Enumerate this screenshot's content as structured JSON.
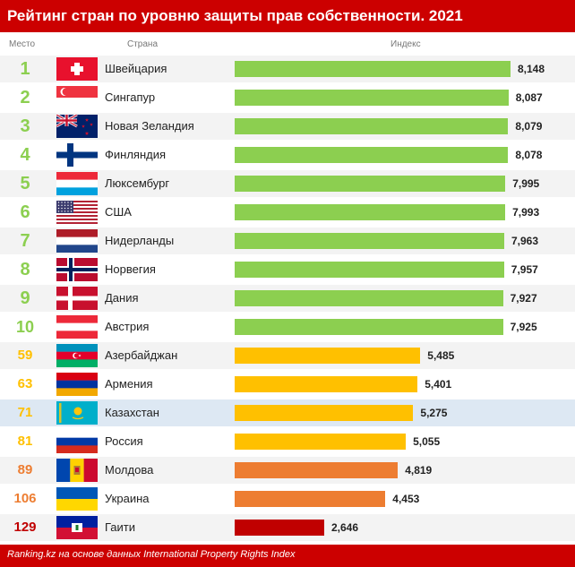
{
  "header": {
    "title": "Рейтинг стран по уровню защиты прав собственности. 2021"
  },
  "columns": {
    "rank": "Место",
    "country": "Страна",
    "index": "Индекс"
  },
  "footer": {
    "source": "Ranking.kz на основе данных International Property Rights Index"
  },
  "colors": {
    "top": "#8ccf50",
    "mid": "#ffc000",
    "low": "#ed7d31",
    "bottom": "#c00000",
    "highlight_row": "#dde8f3",
    "header_bg": "#cc0000"
  },
  "chart_data": {
    "type": "bar",
    "orientation": "horizontal",
    "title": "Рейтинг стран по уровню защиты прав собственности. 2021",
    "xlabel": "Индекс",
    "xlim": [
      0,
      8.148
    ],
    "rows": [
      {
        "rank": "1",
        "country": "Швейцария",
        "value": 8.148,
        "label": "8,148",
        "flag": "switzerland-flag",
        "color": "#8ccf50"
      },
      {
        "rank": "2",
        "country": "Сингапур",
        "value": 8.087,
        "label": "8,087",
        "flag": "singapore-flag",
        "color": "#8ccf50"
      },
      {
        "rank": "3",
        "country": "Новая Зеландия",
        "value": 8.079,
        "label": "8,079",
        "flag": "new-zealand-flag",
        "color": "#8ccf50"
      },
      {
        "rank": "4",
        "country": "Финляндия",
        "value": 8.078,
        "label": "8,078",
        "flag": "finland-flag",
        "color": "#8ccf50"
      },
      {
        "rank": "5",
        "country": "Люксембург",
        "value": 7.995,
        "label": "7,995",
        "flag": "luxembourg-flag",
        "color": "#8ccf50"
      },
      {
        "rank": "6",
        "country": "США",
        "value": 7.993,
        "label": "7,993",
        "flag": "usa-flag",
        "color": "#8ccf50"
      },
      {
        "rank": "7",
        "country": "Нидерланды",
        "value": 7.963,
        "label": "7,963",
        "flag": "netherlands-flag",
        "color": "#8ccf50"
      },
      {
        "rank": "8",
        "country": "Норвегия",
        "value": 7.957,
        "label": "7,957",
        "flag": "norway-flag",
        "color": "#8ccf50"
      },
      {
        "rank": "9",
        "country": "Дания",
        "value": 7.927,
        "label": "7,927",
        "flag": "denmark-flag",
        "color": "#8ccf50"
      },
      {
        "rank": "10",
        "country": "Австрия",
        "value": 7.925,
        "label": "7,925",
        "flag": "austria-flag",
        "color": "#8ccf50"
      },
      {
        "rank": "59",
        "country": "Азербайджан",
        "value": 5.485,
        "label": "5,485",
        "flag": "azerbaijan-flag",
        "color": "#ffc000"
      },
      {
        "rank": "63",
        "country": "Армения",
        "value": 5.401,
        "label": "5,401",
        "flag": "armenia-flag",
        "color": "#ffc000"
      },
      {
        "rank": "71",
        "country": "Казахстан",
        "value": 5.275,
        "label": "5,275",
        "flag": "kazakhstan-flag",
        "color": "#ffc000",
        "highlight": true
      },
      {
        "rank": "81",
        "country": "Россия",
        "value": 5.055,
        "label": "5,055",
        "flag": "russia-flag",
        "color": "#ffc000"
      },
      {
        "rank": "89",
        "country": "Молдова",
        "value": 4.819,
        "label": "4,819",
        "flag": "moldova-flag",
        "color": "#ed7d31"
      },
      {
        "rank": "106",
        "country": "Украина",
        "value": 4.453,
        "label": "4,453",
        "flag": "ukraine-flag",
        "color": "#ed7d31"
      },
      {
        "rank": "129",
        "country": "Гаити",
        "value": 2.646,
        "label": "2,646",
        "flag": "haiti-flag",
        "color": "#c00000"
      }
    ]
  }
}
